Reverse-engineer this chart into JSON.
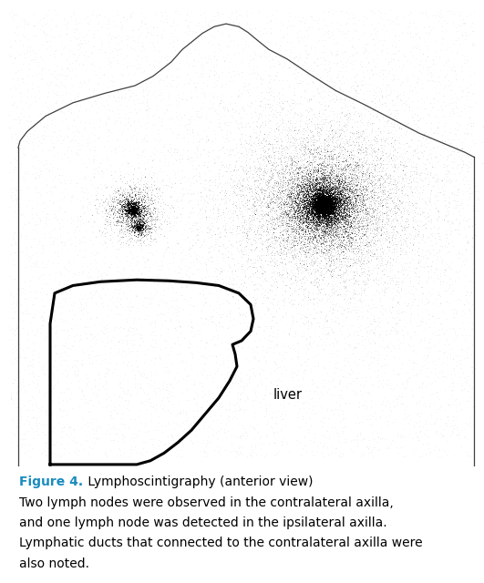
{
  "fig_width": 5.31,
  "fig_height": 6.4,
  "dpi": 100,
  "background_color": "#ffffff",
  "caption_bold": "Figure 4.",
  "caption_bold_color": "#1a8bbf",
  "caption_rest": " Lymphoscintigraphy (anterior view)",
  "caption_line2": "Two lymph nodes were observed in the contralateral axilla,",
  "caption_line3": "and one lymph node was detected in the ipsilateral axilla.",
  "caption_line4": "Lymphatic ducts that connected to the contralateral axilla were",
  "caption_line5": "also noted.",
  "caption_fontsize": 10.0,
  "liver_label": "liver",
  "liver_label_fontsize": 10.5
}
